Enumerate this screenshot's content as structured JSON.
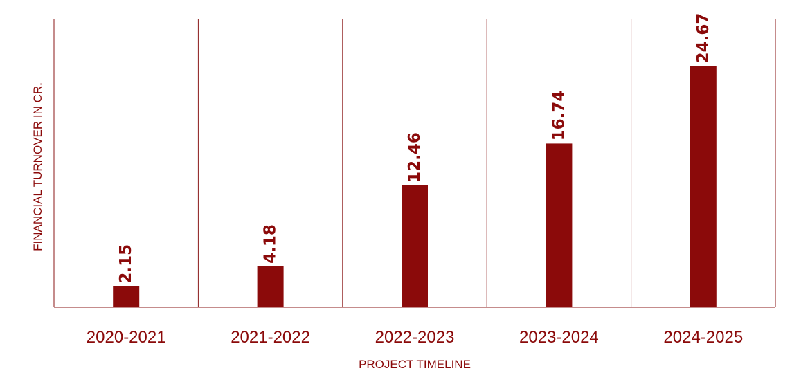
{
  "colors": {
    "bar": "#8B0A0A",
    "text": "#8B0A0A",
    "line": "#8B1A1A",
    "background": "#FFFFFF"
  },
  "chart_data": {
    "type": "bar",
    "title": "",
    "xlabel": "PROJECT TIMELINE",
    "ylabel": "FINANCIAL TURNOVER IN CR.",
    "categories": [
      "2020-2021",
      "2021-2022",
      "2022-2023",
      "2023-2024",
      "2024-2025"
    ],
    "values": [
      2.15,
      4.18,
      12.46,
      16.74,
      24.67
    ],
    "data_labels": [
      "2.15",
      "4.18",
      "12.46",
      "16.74",
      "24.67"
    ],
    "ylim": [
      0,
      30
    ],
    "grid": "vertical category separators",
    "legend": "none"
  }
}
